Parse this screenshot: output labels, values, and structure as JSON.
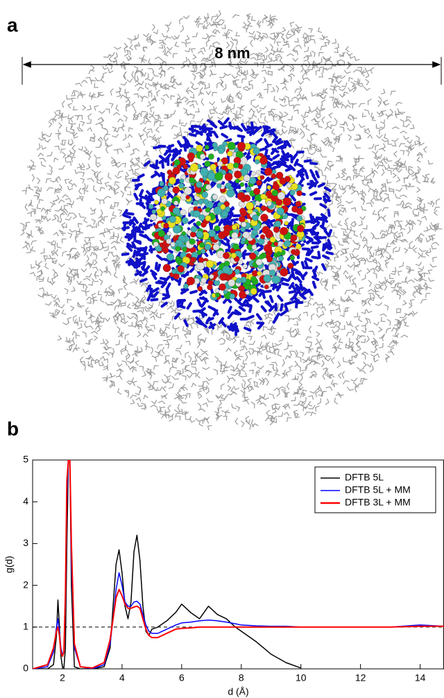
{
  "panels": {
    "a": {
      "label": "a",
      "scale_label": "8 nm"
    },
    "b": {
      "label": "b"
    }
  },
  "chart_data": {
    "type": "line",
    "xlabel": "d (Å)",
    "ylabel": "g(d)",
    "x": [
      1.0,
      1.5,
      1.7,
      1.8,
      1.85,
      1.9,
      1.95,
      2.0,
      2.05,
      2.1,
      2.15,
      2.2,
      2.25,
      2.3,
      2.4,
      2.6,
      3.0,
      3.4,
      3.6,
      3.7,
      3.8,
      3.9,
      4.0,
      4.1,
      4.2,
      4.3,
      4.4,
      4.5,
      4.6,
      4.7,
      4.8,
      4.9,
      5.0,
      5.2,
      5.5,
      5.8,
      6.0,
      6.3,
      6.6,
      6.9,
      7.2,
      7.5,
      7.8,
      8.0,
      8.5,
      9.0,
      9.5,
      10.0,
      10.5,
      11,
      12,
      13,
      14,
      14.8
    ],
    "series": [
      {
        "name": "DFTB 5L",
        "color": "#000000",
        "values": [
          0,
          0,
          0.1,
          0.8,
          1.65,
          1.0,
          0.3,
          0.05,
          0.02,
          0.5,
          3.0,
          5,
          5,
          2.0,
          0.05,
          0,
          0,
          0.05,
          0.5,
          1.5,
          2.5,
          2.85,
          2.3,
          1.5,
          1.2,
          1.6,
          2.8,
          3.2,
          2.6,
          1.5,
          0.9,
          0.8,
          0.95,
          1.0,
          1.15,
          1.35,
          1.55,
          1.35,
          1.2,
          1.5,
          1.3,
          1.2,
          1.0,
          0.9,
          0.65,
          0.35,
          0.15,
          0.02,
          null,
          null,
          null,
          null,
          null,
          null
        ]
      },
      {
        "name": "DFTB 5L + MM",
        "color": "#0000ff",
        "values": [
          0,
          0.05,
          0.4,
          1.0,
          1.2,
          0.9,
          0.5,
          0.35,
          0.4,
          1.5,
          4.0,
          5,
          5,
          2.5,
          0.5,
          0.05,
          0,
          0.1,
          0.6,
          1.2,
          1.9,
          2.3,
          2.0,
          1.6,
          1.5,
          1.5,
          1.6,
          1.62,
          1.55,
          1.3,
          1.05,
          0.9,
          0.85,
          0.85,
          0.95,
          1.05,
          1.1,
          1.12,
          1.15,
          1.17,
          1.15,
          1.12,
          1.08,
          1.05,
          1.03,
          1.02,
          1.02,
          1.0,
          1.0,
          1.0,
          1.0,
          1.0,
          1.05,
          1.02
        ]
      },
      {
        "name": "DFTB 3L + MM",
        "color": "#ff0000",
        "values": [
          0,
          0.1,
          0.5,
          0.9,
          1.0,
          0.8,
          0.4,
          0.3,
          0.4,
          1.8,
          4.5,
          5,
          5,
          3.0,
          0.6,
          0.05,
          0.02,
          0.15,
          0.7,
          1.2,
          1.7,
          1.9,
          1.75,
          1.55,
          1.45,
          1.45,
          1.48,
          1.5,
          1.45,
          1.2,
          0.95,
          0.8,
          0.75,
          0.75,
          0.85,
          0.95,
          0.97,
          0.98,
          1.0,
          1.0,
          1.0,
          1.0,
          1.0,
          1.0,
          1.0,
          1.0,
          1.0,
          1.0,
          1.0,
          1.0,
          1.0,
          1.0,
          1.02,
          1.02
        ]
      }
    ],
    "xlim": [
      1,
      14.8
    ],
    "ylim": [
      0,
      5
    ],
    "xticks": [
      2,
      4,
      6,
      8,
      10,
      12,
      14
    ],
    "yticks": [
      0,
      1,
      2,
      3,
      4,
      5
    ],
    "reference_line": 1,
    "legend": "upper right"
  }
}
